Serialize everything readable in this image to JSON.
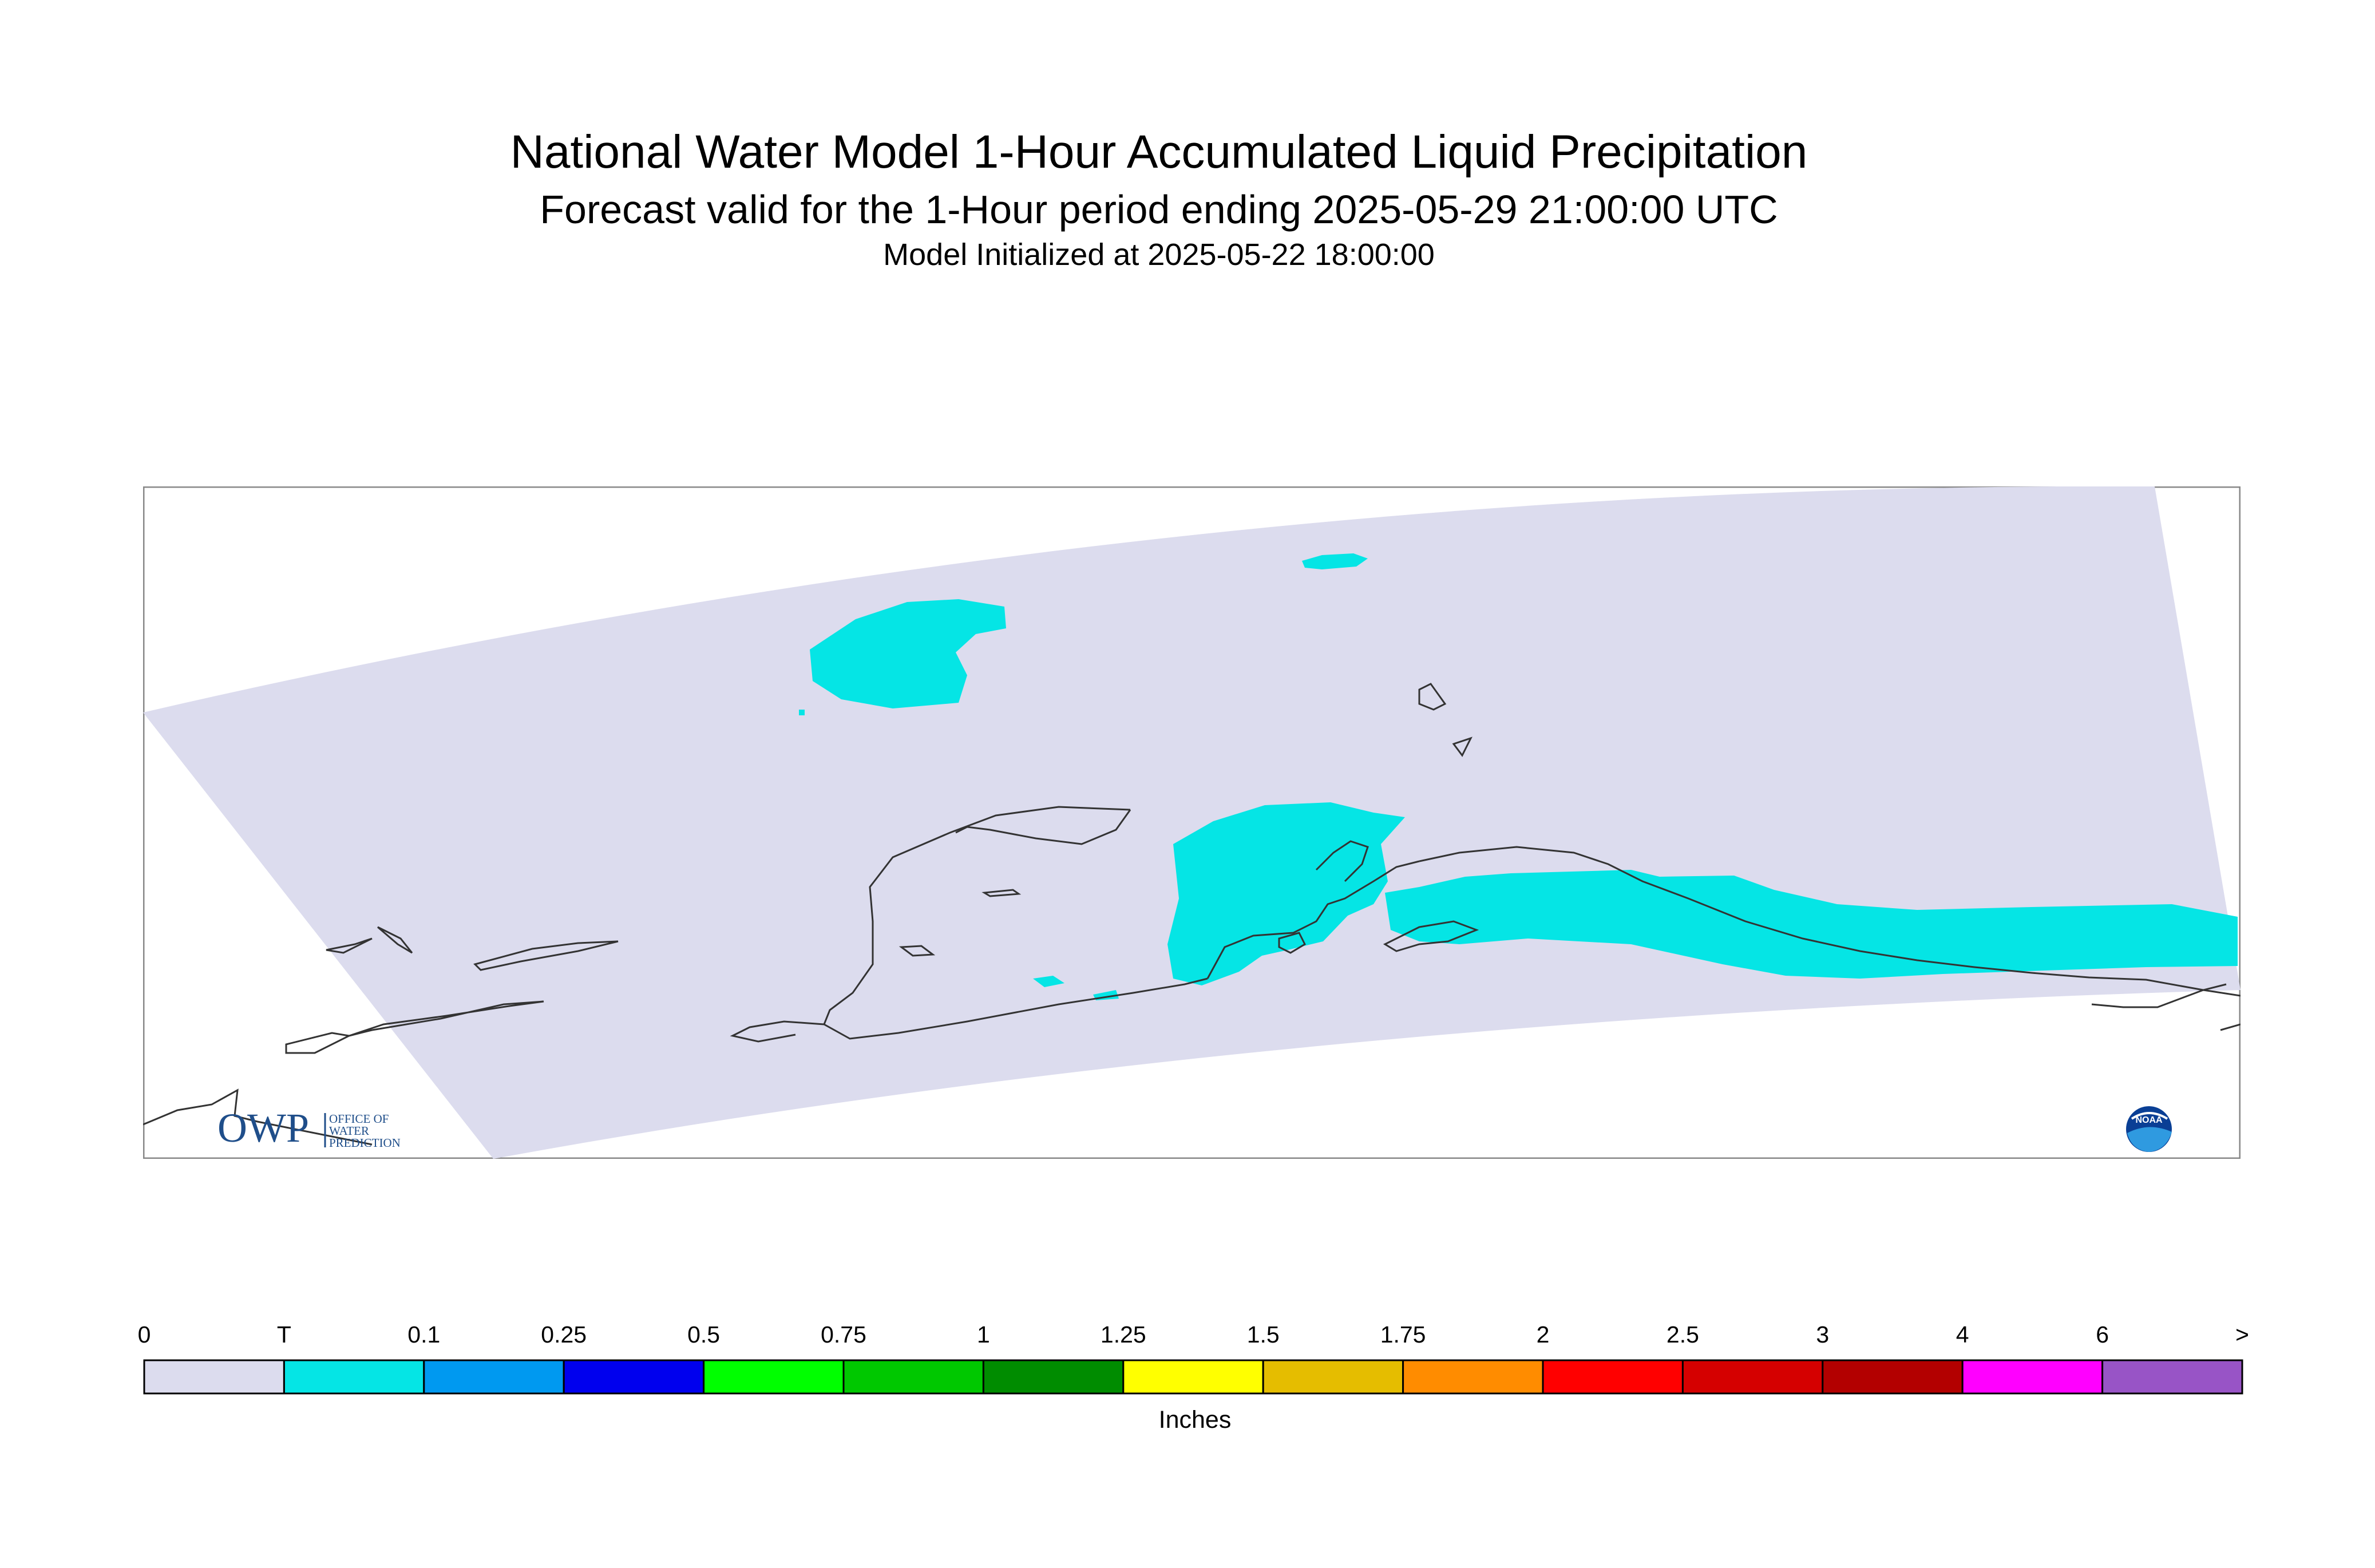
{
  "title": {
    "line1": "National Water Model 1-Hour Accumulated Liquid Precipitation",
    "line2": "Forecast valid for the 1-Hour period ending 2025-05-29 21:00:00 UTC",
    "line3": "Model Initialized at 2025-05-22 18:00:00"
  },
  "map": {
    "domain_fill_color": "#dcdcee",
    "precip_fill_color": "#05e5e5",
    "coastline_color": "#333333"
  },
  "logos": {
    "owp": {
      "letters": "OWP",
      "line1": "OFFICE OF",
      "line2": "WATER",
      "line3": "PREDICTION"
    },
    "noaa": {
      "text": "NOAA"
    }
  },
  "legend": {
    "unit": "Inches",
    "tick_labels": [
      "0",
      "T",
      "0.1",
      "0.25",
      "0.5",
      "0.75",
      "1",
      "1.25",
      "1.5",
      "1.75",
      "2",
      "2.5",
      "3",
      "4",
      "6",
      ">"
    ],
    "colors": [
      "#dcdcee",
      "#05e5e5",
      "#0099f0",
      "#0000ee",
      "#00ff00",
      "#00c800",
      "#008c00",
      "#ffff00",
      "#e5bd00",
      "#ff8c00",
      "#ff0000",
      "#d50000",
      "#b30000",
      "#ff00ff",
      "#9854c6"
    ]
  }
}
